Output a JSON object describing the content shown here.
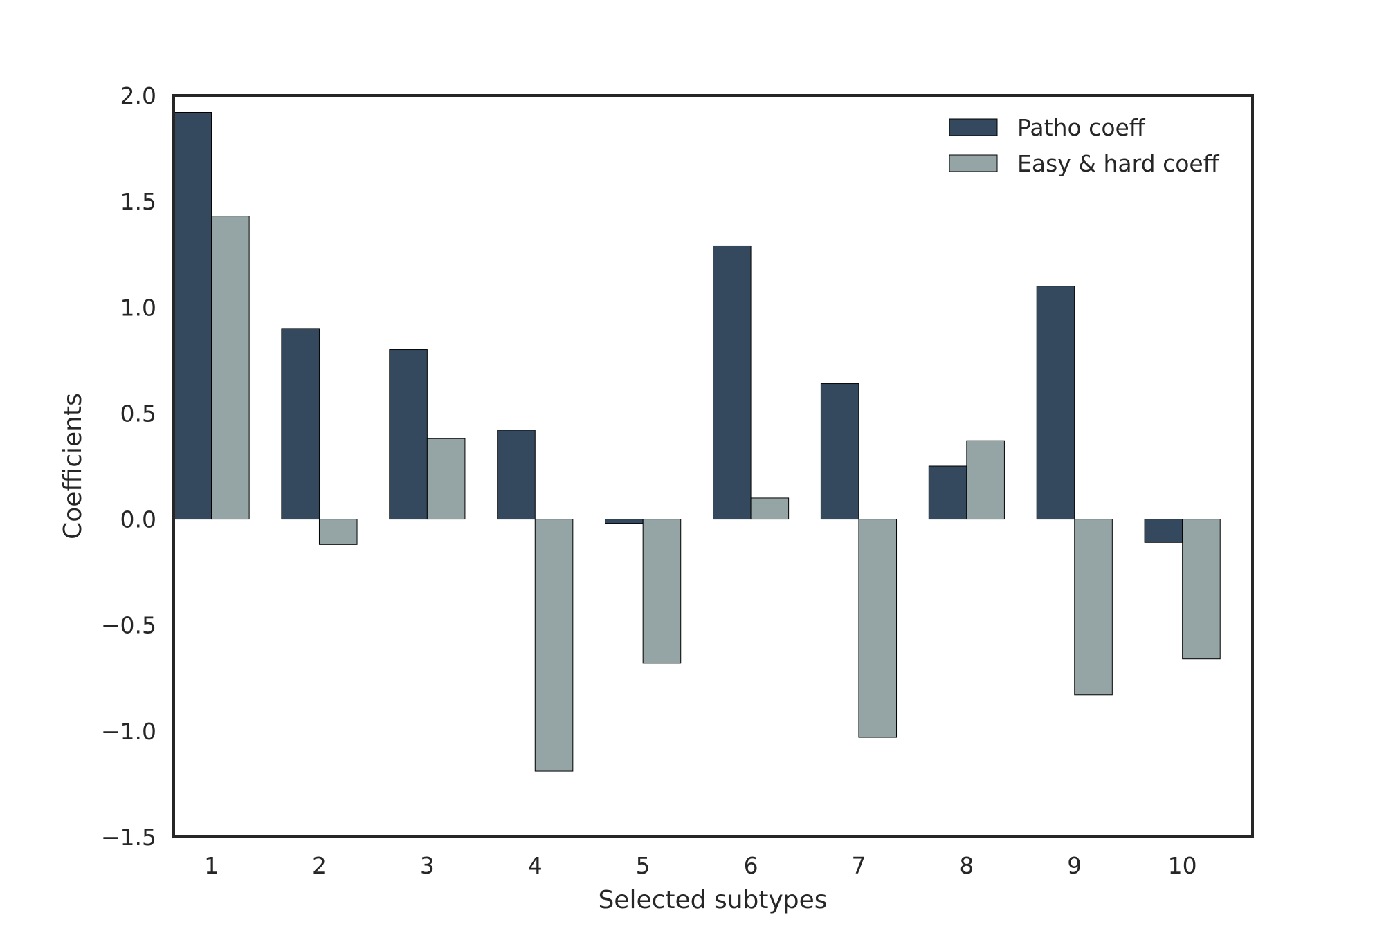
{
  "chart_data": {
    "type": "bar",
    "title": "",
    "xlabel": "Selected subtypes",
    "ylabel": "Coefficients",
    "categories": [
      "1",
      "2",
      "3",
      "4",
      "5",
      "6",
      "7",
      "8",
      "9",
      "10"
    ],
    "series": [
      {
        "name": "Patho coeff",
        "color": "#34495e",
        "values": [
          1.92,
          0.9,
          0.8,
          0.42,
          -0.02,
          1.29,
          0.64,
          0.25,
          1.1,
          -0.11
        ]
      },
      {
        "name": "Easy & hard coeff",
        "color": "#95a5a6",
        "values": [
          1.43,
          -0.12,
          0.38,
          -1.19,
          -0.68,
          0.1,
          -1.03,
          0.37,
          -0.83,
          -0.66
        ]
      }
    ],
    "ylim": [
      -1.5,
      2.0
    ],
    "yticks": [
      "2.0",
      "1.5",
      "1.0",
      "0.5",
      "0.0",
      "−0.5",
      "−1.0",
      "−1.5"
    ],
    "ytick_values": [
      2.0,
      1.5,
      1.0,
      0.5,
      0.0,
      -0.5,
      -1.0,
      -1.5
    ],
    "legend_position": "top-right",
    "grid": false
  }
}
